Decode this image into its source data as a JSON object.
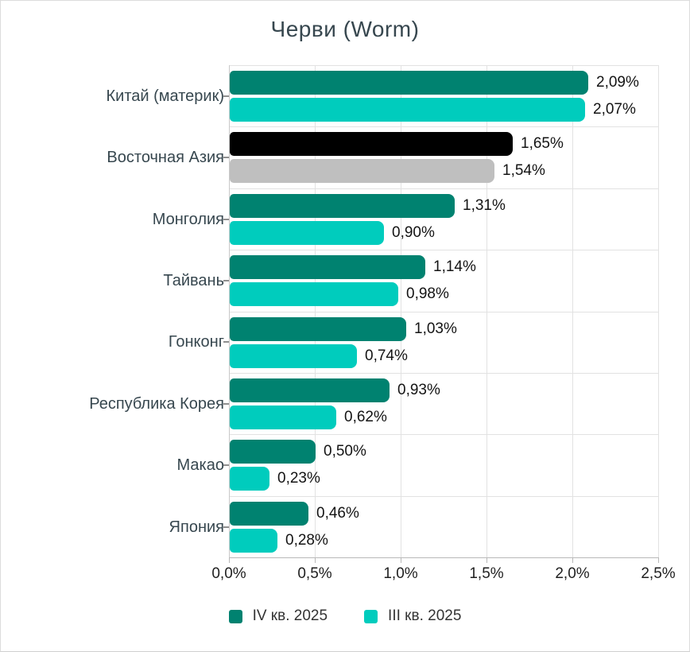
{
  "title": "Черви (Worm)",
  "chart_data": {
    "type": "bar",
    "orientation": "horizontal",
    "title": "Черви (Worm)",
    "xlabel": "",
    "ylabel": "",
    "xlim": [
      0,
      2.5
    ],
    "x_tick_labels": [
      "0,0%",
      "0,5%",
      "1,0%",
      "1,5%",
      "2,0%",
      "2,5%"
    ],
    "x_tick_values": [
      0,
      0.5,
      1.0,
      1.5,
      2.0,
      2.5
    ],
    "grid": "vertical",
    "legend_position": "bottom",
    "value_label_format": "comma-decimal percent",
    "categories": [
      "Китай (материк)",
      "Восточная Азия",
      "Монголия",
      "Тайвань",
      "Гонконг",
      "Республика Корея",
      "Макао",
      "Япония"
    ],
    "series": [
      {
        "name": "IV кв. 2025",
        "color": "#008270",
        "values": [
          2.09,
          1.65,
          1.31,
          1.14,
          1.03,
          0.93,
          0.5,
          0.46
        ],
        "labels": [
          "2,09%",
          "1,65%",
          "1,31%",
          "1,14%",
          "1,03%",
          "0,93%",
          "0,50%",
          "0,46%"
        ]
      },
      {
        "name": "III кв. 2025",
        "color": "#00ccbd",
        "values": [
          2.07,
          1.54,
          0.9,
          0.98,
          0.74,
          0.62,
          0.23,
          0.28
        ],
        "labels": [
          "2,07%",
          "1,54%",
          "0,90%",
          "0,98%",
          "0,74%",
          "0,62%",
          "0,23%",
          "0,28%"
        ]
      }
    ],
    "highlighted_category": {
      "name": "Восточная Азия",
      "index": 1,
      "series_colors": [
        "#000000",
        "#bfbfbf"
      ]
    },
    "style_colors": {
      "grid": "#e2e2e2",
      "axis": "#b8b8b8",
      "title_text": "#37474f",
      "category_text": "#37474f",
      "value_text": "#141414",
      "tick_text": "#1f1f1f"
    }
  }
}
